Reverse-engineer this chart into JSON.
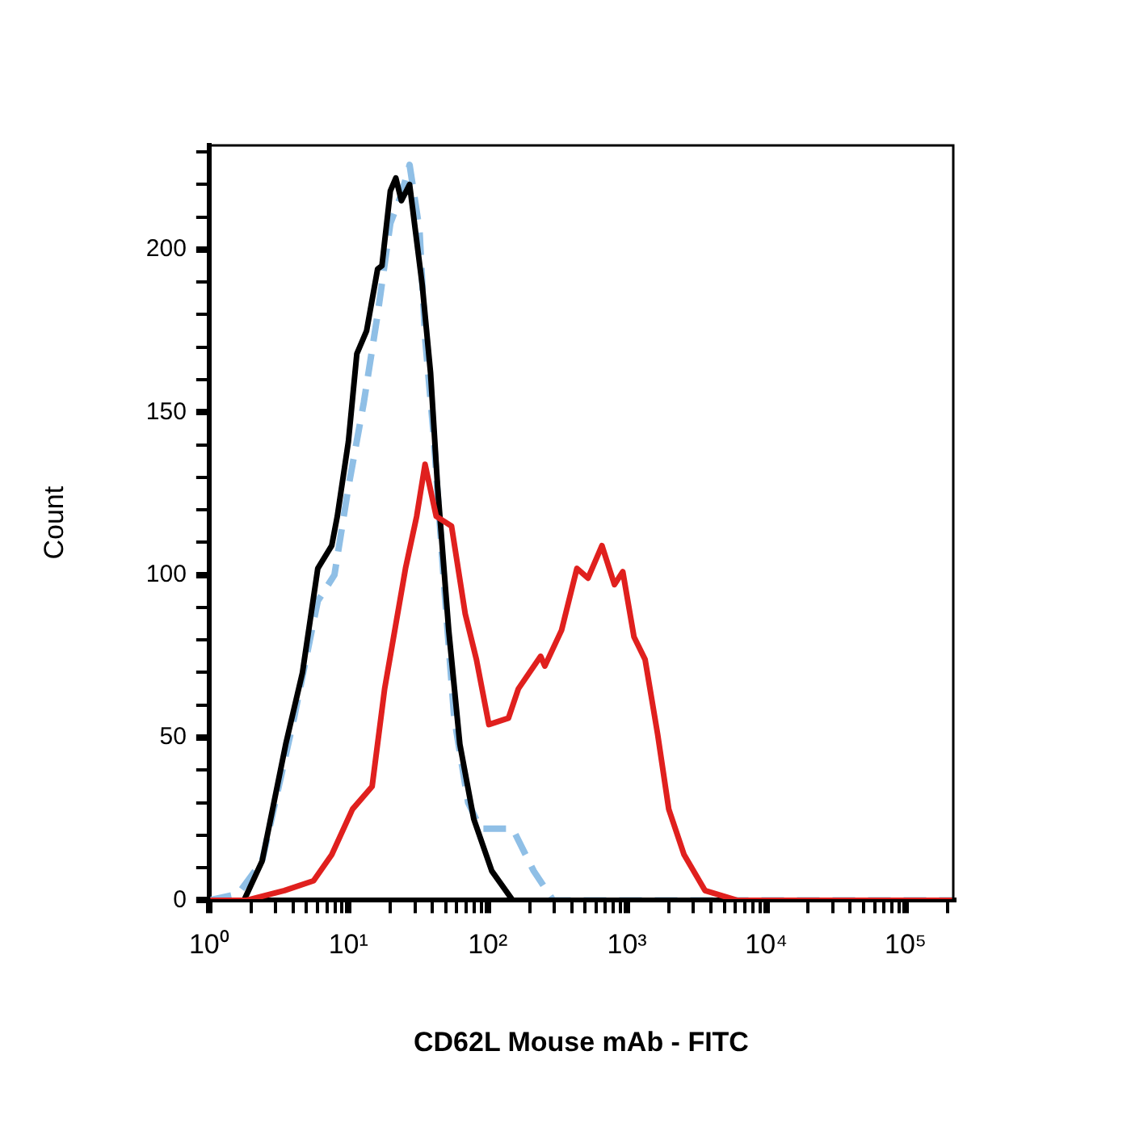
{
  "chart_data": {
    "type": "line",
    "xlabel": "CD62L Mouse mAb - FITC",
    "ylabel": "Count",
    "log": "x",
    "grid": false,
    "legend": false,
    "marker": "none",
    "xlim": [
      1,
      220000
    ],
    "ylim": [
      0,
      232
    ],
    "xticks": [
      {
        "value": 1,
        "label": "10⁰"
      },
      {
        "value": 2,
        "label": null
      },
      {
        "value": 3,
        "label": null
      },
      {
        "value": 4,
        "label": null
      },
      {
        "value": 5,
        "label": null
      },
      {
        "value": 6,
        "label": null
      },
      {
        "value": 7,
        "label": null
      },
      {
        "value": 8,
        "label": null
      },
      {
        "value": 9,
        "label": null
      },
      {
        "value": 10,
        "label": "10¹"
      },
      {
        "value": 20,
        "label": null
      },
      {
        "value": 30,
        "label": null
      },
      {
        "value": 40,
        "label": null
      },
      {
        "value": 50,
        "label": null
      },
      {
        "value": 60,
        "label": null
      },
      {
        "value": 70,
        "label": null
      },
      {
        "value": 80,
        "label": null
      },
      {
        "value": 90,
        "label": null
      },
      {
        "value": 100,
        "label": "10²"
      },
      {
        "value": 200,
        "label": null
      },
      {
        "value": 300,
        "label": null
      },
      {
        "value": 400,
        "label": null
      },
      {
        "value": 500,
        "label": null
      },
      {
        "value": 600,
        "label": null
      },
      {
        "value": 700,
        "label": null
      },
      {
        "value": 800,
        "label": null
      },
      {
        "value": 900,
        "label": null
      },
      {
        "value": 1000,
        "label": "10³"
      },
      {
        "value": 2000,
        "label": null
      },
      {
        "value": 3000,
        "label": null
      },
      {
        "value": 4000,
        "label": null
      },
      {
        "value": 5000,
        "label": null
      },
      {
        "value": 6000,
        "label": null
      },
      {
        "value": 7000,
        "label": null
      },
      {
        "value": 8000,
        "label": null
      },
      {
        "value": 9000,
        "label": null
      },
      {
        "value": 10000,
        "label": "10⁴"
      },
      {
        "value": 20000,
        "label": null
      },
      {
        "value": 30000,
        "label": null
      },
      {
        "value": 40000,
        "label": null
      },
      {
        "value": 50000,
        "label": null
      },
      {
        "value": 60000,
        "label": null
      },
      {
        "value": 70000,
        "label": null
      },
      {
        "value": 80000,
        "label": null
      },
      {
        "value": 90000,
        "label": null
      },
      {
        "value": 100000,
        "label": "10⁵"
      },
      {
        "value": 200000,
        "label": null
      }
    ],
    "yticks": [
      0,
      {
        "value": 10,
        "label": null
      },
      {
        "value": 20,
        "label": null
      },
      {
        "value": 30,
        "label": null
      },
      {
        "value": 40,
        "label": null
      },
      50,
      {
        "value": 60,
        "label": null
      },
      {
        "value": 70,
        "label": null
      },
      {
        "value": 80,
        "label": null
      },
      {
        "value": 90,
        "label": null
      },
      100,
      {
        "value": 110,
        "label": null
      },
      {
        "value": 120,
        "label": null
      },
      {
        "value": 130,
        "label": null
      },
      {
        "value": 140,
        "label": null
      },
      150,
      {
        "value": 160,
        "label": null
      },
      {
        "value": 170,
        "label": null
      },
      {
        "value": 180,
        "label": null
      },
      {
        "value": 190,
        "label": null
      },
      200,
      {
        "value": 210,
        "label": null
      },
      {
        "value": 220,
        "label": null
      },
      {
        "value": 230,
        "label": null
      }
    ],
    "series": [
      {
        "color": "#e0201e",
        "line_style": "solid",
        "x": [
          1,
          1.86,
          3.47,
          5.62,
          7.59,
          10.7,
          14.8,
          18.2,
          25.7,
          30.9,
          35.5,
          42.7,
          55,
          69,
          83,
          102,
          141,
          166,
          240,
          257,
          339,
          437,
          525,
          661,
          813,
          933,
          1122,
          1349,
          1660,
          1995,
          2570,
          3630,
          6166,
          220000
        ],
        "values": [
          0,
          0,
          3,
          6,
          14,
          28,
          35,
          65,
          102,
          118,
          134,
          118,
          115,
          88,
          74,
          54,
          56,
          65,
          75,
          72,
          83,
          102,
          99,
          109,
          97,
          101,
          81,
          74,
          51,
          28,
          14,
          3,
          0,
          0
        ]
      },
      {
        "color": "#000000",
        "line_style": "solid",
        "x": [
          1.78,
          2.4,
          3.55,
          4.68,
          6.03,
          7.59,
          8.32,
          10,
          11.5,
          13.5,
          16.2,
          17.4,
          20,
          21.9,
          24,
          27.5,
          33.9,
          38.9,
          43.7,
          52.5,
          63.1,
          79.4,
          107,
          151,
          220000
        ],
        "values": [
          0,
          12,
          48,
          70,
          102,
          109,
          118,
          141,
          168,
          175,
          194,
          195,
          218,
          222,
          215,
          220,
          189,
          162,
          127,
          83,
          48,
          25,
          9,
          0,
          0
        ]
      },
      {
        "color": "#8fbfe6",
        "line_style": "dashed",
        "x": [
          1,
          1.62,
          2.4,
          4.07,
          6.03,
          7.94,
          10,
          12.9,
          16.2,
          20,
          24,
          27.5,
          32.4,
          35.5,
          40.7,
          49,
          57.5,
          72.4,
          89,
          151,
          214,
          295,
          220000
        ],
        "values": [
          0,
          2,
          12,
          56,
          92,
          100,
          127,
          153,
          180,
          208,
          217,
          226,
          206,
          173,
          144,
          95,
          56,
          30,
          22,
          22,
          9,
          0,
          0
        ]
      }
    ]
  }
}
